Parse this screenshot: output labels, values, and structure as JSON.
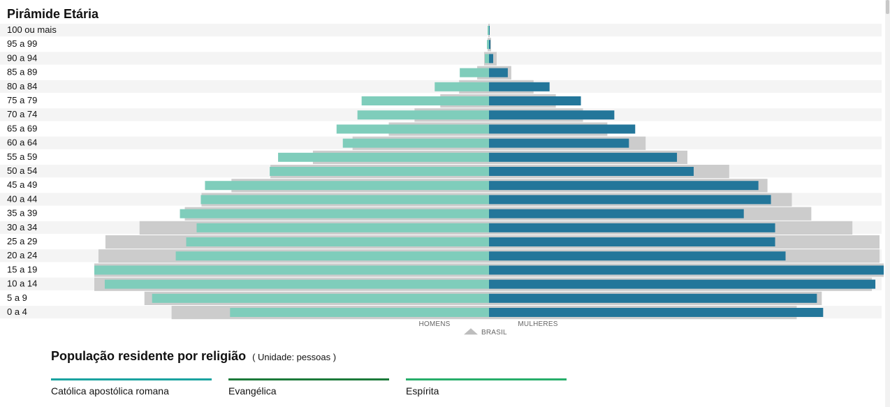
{
  "chart_data": {
    "type": "bar",
    "title": "Pirâmide Etária",
    "categories": [
      "100 ou mais",
      "95 a 99",
      "90 a 94",
      "85 a 89",
      "80 a 84",
      "75 a 79",
      "70 a 74",
      "65 a 69",
      "60 a 64",
      "55 a 59",
      "50 a 54",
      "45 a 49",
      "40 a 44",
      "35 a 39",
      "30 a 34",
      "25 a 29",
      "20 a 24",
      "15 a 19",
      "10 a 14",
      "5 a 9",
      "0 a 4"
    ],
    "x_min": -570,
    "x_max": 570,
    "series": [
      {
        "name": "BRASIL",
        "side": "HOMENS",
        "values": [
          -1,
          -2,
          -7,
          -17,
          -43,
          -70,
          -107,
          -144,
          -196,
          -253,
          -314,
          -370,
          -413,
          -437,
          -502,
          -551,
          -561,
          -567,
          -567,
          -495,
          -456
        ]
      },
      {
        "name": "BRASIL",
        "side": "MULHERES",
        "values": [
          1,
          3,
          11,
          32,
          64,
          96,
          135,
          170,
          225,
          285,
          345,
          400,
          435,
          463,
          522,
          561,
          561,
          567,
          550,
          478,
          442
        ]
      },
      {
        "side": "HOMENS",
        "values": [
          -2,
          -3,
          -6,
          -42,
          -78,
          -183,
          -189,
          -219,
          -210,
          -303,
          -315,
          -408,
          -414,
          -444,
          -420,
          -435,
          -450,
          -567,
          -552,
          -484,
          -372
        ]
      },
      {
        "side": "MULHERES",
        "values": [
          1,
          2,
          6,
          27,
          87,
          132,
          180,
          210,
          201,
          270,
          294,
          387,
          405,
          366,
          411,
          411,
          426,
          567,
          555,
          471,
          480
        ]
      }
    ],
    "axis_labels": {
      "left": "HOMENS",
      "right": "MULHERES"
    },
    "legend_marker_label": "BRASIL",
    "colors": {
      "brasil": "#cccccc",
      "homens": "#7fcdbb",
      "mulheres": "#23769a",
      "row_stripe": "#f4f4f4"
    }
  },
  "legend": {
    "title": "População residente por religião",
    "unit": "( Unidade: pessoas )",
    "items": [
      {
        "label": "Católica apostólica romana",
        "color": "#1aa3a0"
      },
      {
        "label": "Evangélica",
        "color": "#1c7a3a"
      },
      {
        "label": "Espírita",
        "color": "#27ae6a"
      }
    ]
  }
}
